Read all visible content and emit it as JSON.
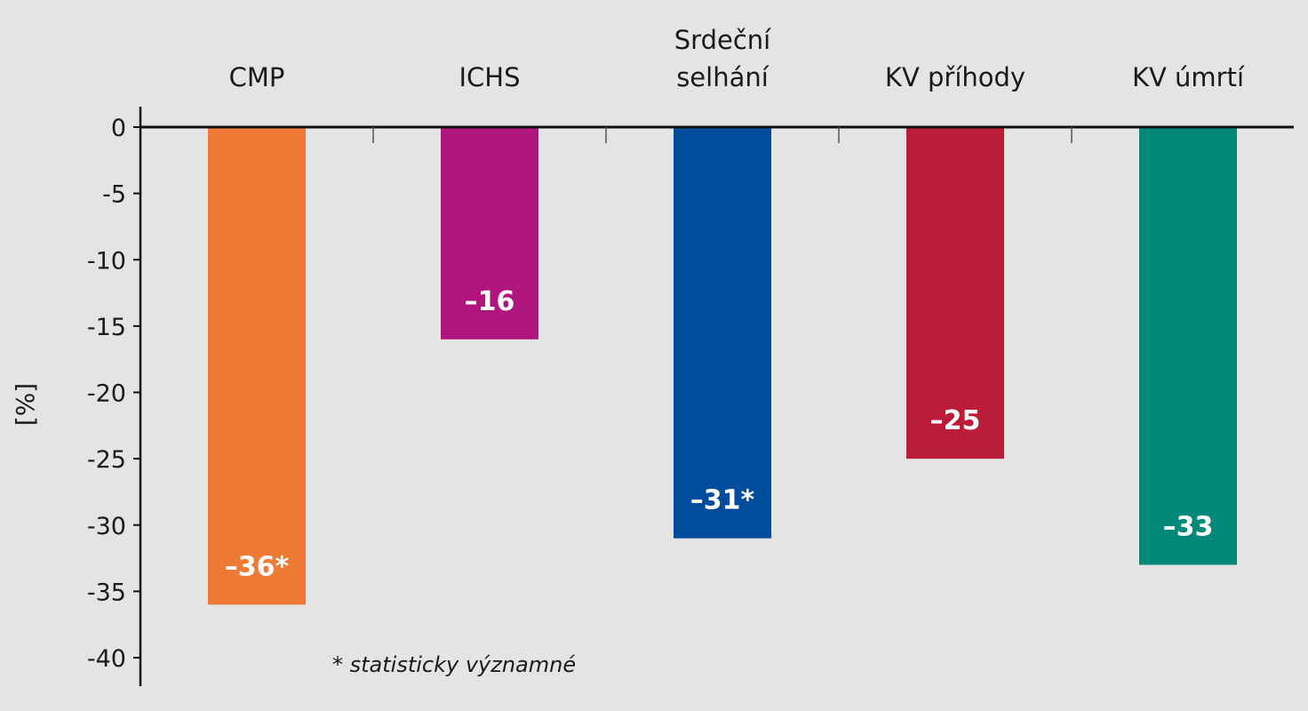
{
  "chart_data": {
    "type": "bar",
    "categories": [
      "CMP",
      "ICHS",
      "Srdeční selhání",
      "KV příhody",
      "KV úmrtí"
    ],
    "category_lines": [
      [
        "CMP"
      ],
      [
        "ICHS"
      ],
      [
        "Srdeční",
        "selhání"
      ],
      [
        "KV příhody"
      ],
      [
        "KV úmrtí"
      ]
    ],
    "values": [
      -36,
      -16,
      -31,
      -25,
      -33
    ],
    "data_labels": [
      "–36*",
      "–16",
      "–31*",
      "–25",
      "–33"
    ],
    "colors": [
      "#ee7a35",
      "#b0157e",
      "#004c9c",
      "#bb1d38",
      "#008878"
    ],
    "ylabel": "[%]",
    "ylim": [
      -40,
      0
    ],
    "yticks": [
      0,
      -5,
      -10,
      -15,
      -20,
      -25,
      -30,
      -35,
      -40
    ],
    "ytick_labels": [
      "0",
      "-5",
      "-10",
      "-15",
      "-20",
      "-25",
      "-30",
      "-35",
      "-40"
    ],
    "xaxis_position": "top",
    "grid": false,
    "legend": null,
    "footnote": "* statisticky významné"
  }
}
